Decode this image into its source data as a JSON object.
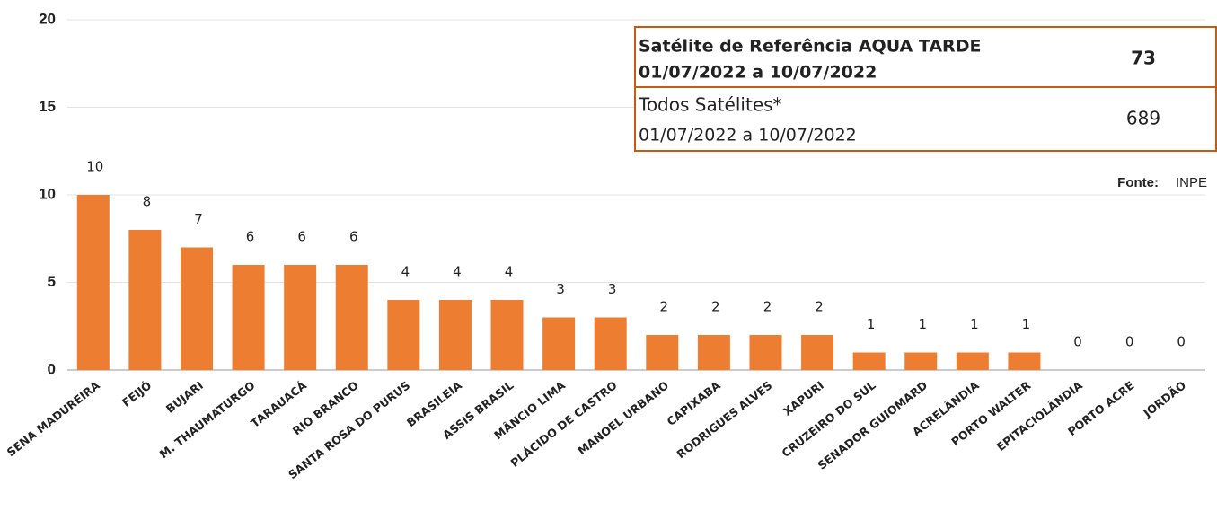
{
  "chart_data": {
    "type": "bar",
    "categories": [
      "SENA MADUREIRA",
      "FEIJÓ",
      "BUJARI",
      "M. THAUMATURGO",
      "TARAUACÁ",
      "RIO BRANCO",
      "SANTA ROSA DO PURUS",
      "BRASILEIA",
      "ASSIS BRASIL",
      "MÂNCIO LIMA",
      "PLÁCIDO DE CASTRO",
      "MANOEL URBANO",
      "CAPIXABA",
      "RODRIGUES ALVES",
      "XAPURI",
      "CRUZEIRO DO SUL",
      "SENADOR GUIOMARD",
      "ACRELÂNDIA",
      "PORTO WALTER",
      "EPITACIOLÂNDIA",
      "PORTO ACRE",
      "JORDÃO"
    ],
    "values": [
      10,
      8,
      7,
      6,
      6,
      6,
      4,
      4,
      4,
      3,
      3,
      2,
      2,
      2,
      2,
      1,
      1,
      1,
      1,
      0,
      0,
      0
    ],
    "color": "#ed7d31",
    "ylim": [
      0,
      20
    ],
    "yticks": [
      0,
      5,
      10,
      15,
      20
    ],
    "grid": true
  },
  "table": {
    "rows": [
      {
        "label": "Satélite de Referência AQUA TARDE",
        "period": "01/07/2022 a 10/07/2022",
        "value": 73
      },
      {
        "label": "Todos Satélites*",
        "period": "01/07/2022 a 10/07/2022",
        "value": 689
      }
    ]
  },
  "source": {
    "label": "Fonte:",
    "value": "INPE"
  }
}
